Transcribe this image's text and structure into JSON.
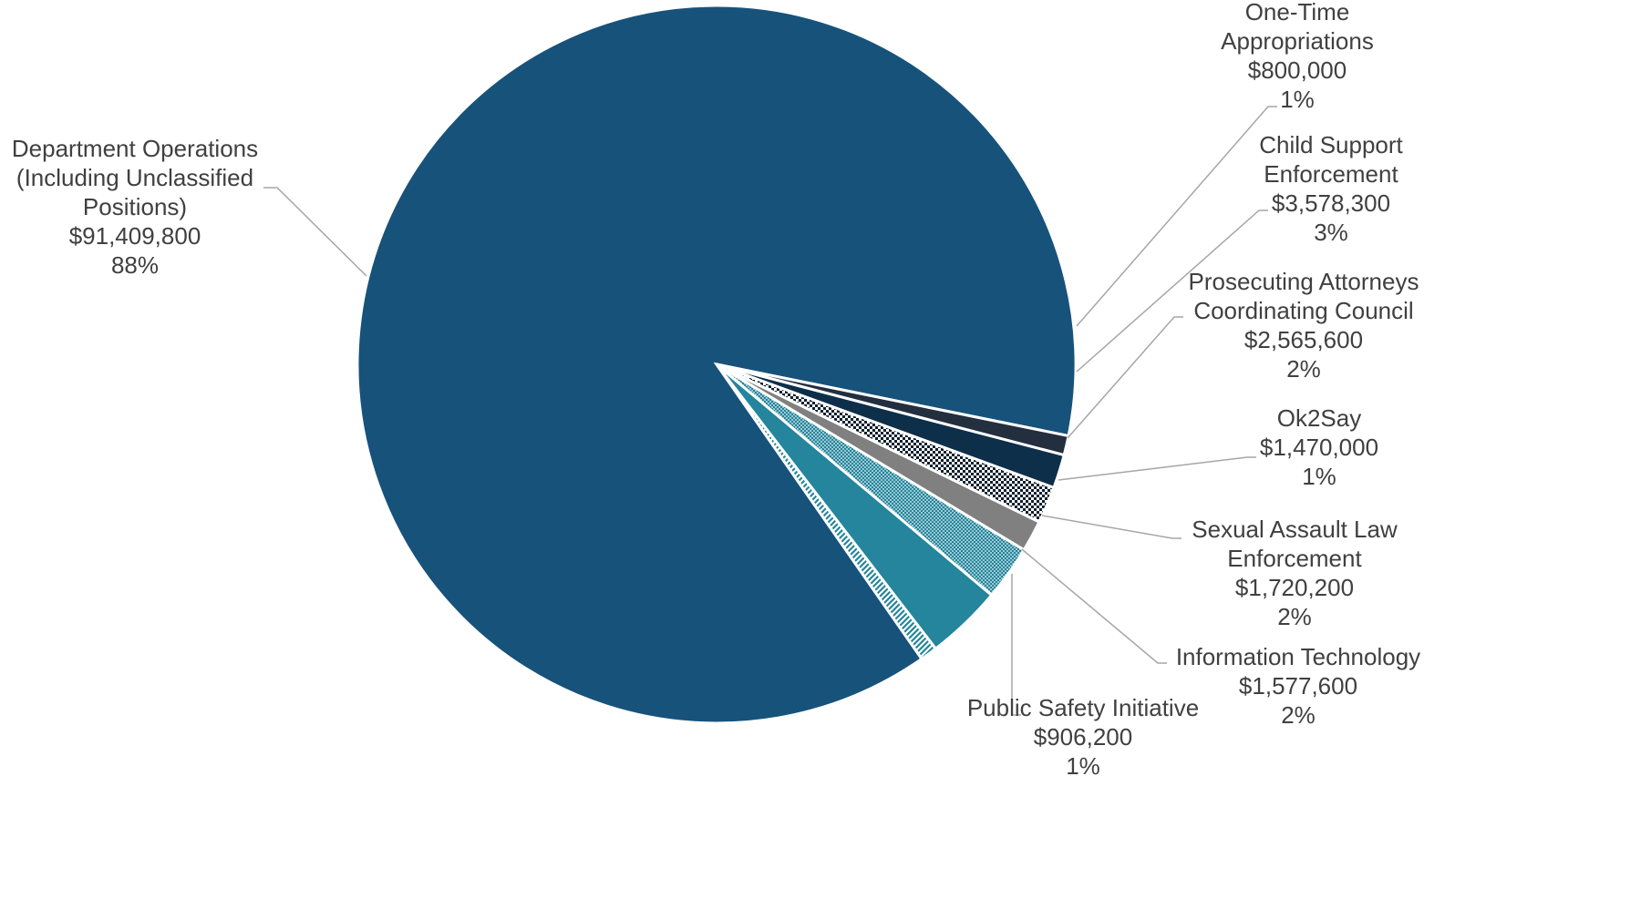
{
  "chart_data": {
    "type": "pie",
    "title": "",
    "legend": "none",
    "slices": [
      {
        "label_lines": [
          "Department Operations",
          "(Including Unclassified",
          "Positions)"
        ],
        "value": 91409800,
        "value_label": "$91,409,800",
        "percent_label": "88%",
        "fill": "#17527b",
        "pattern": "solid"
      },
      {
        "label_lines": [
          "One-Time",
          "Appropriations"
        ],
        "value": 800000,
        "value_label": "$800,000",
        "percent_label": "1%",
        "fill": "#24859c",
        "pattern": "diagonal"
      },
      {
        "label_lines": [
          "Child Support",
          "Enforcement"
        ],
        "value": 3578300,
        "value_label": "$3,578,300",
        "percent_label": "3%",
        "fill": "#24859c",
        "pattern": "solid"
      },
      {
        "label_lines": [
          "Prosecuting Attorneys",
          "Coordinating Council"
        ],
        "value": 2565600,
        "value_label": "$2,565,600",
        "percent_label": "2%",
        "fill": "#24859c",
        "pattern": "dots"
      },
      {
        "label_lines": [
          "Ok2Say"
        ],
        "value": 1470000,
        "value_label": "$1,470,000",
        "percent_label": "1%",
        "fill": "#808080",
        "pattern": "solid"
      },
      {
        "label_lines": [
          "Sexual Assault Law",
          "Enforcement"
        ],
        "value": 1720200,
        "value_label": "$1,720,200",
        "percent_label": "2%",
        "fill": "#0f1f2e",
        "pattern": "checker"
      },
      {
        "label_lines": [
          "Information Technology"
        ],
        "value": 1577600,
        "value_label": "$1,577,600",
        "percent_label": "2%",
        "fill": "#0e2f4a",
        "pattern": "solid"
      },
      {
        "label_lines": [
          "Public Safety Initiative"
        ],
        "value": 906200,
        "value_label": "$906,200",
        "percent_label": "1%",
        "fill": "#232f3f",
        "pattern": "solid"
      }
    ]
  }
}
